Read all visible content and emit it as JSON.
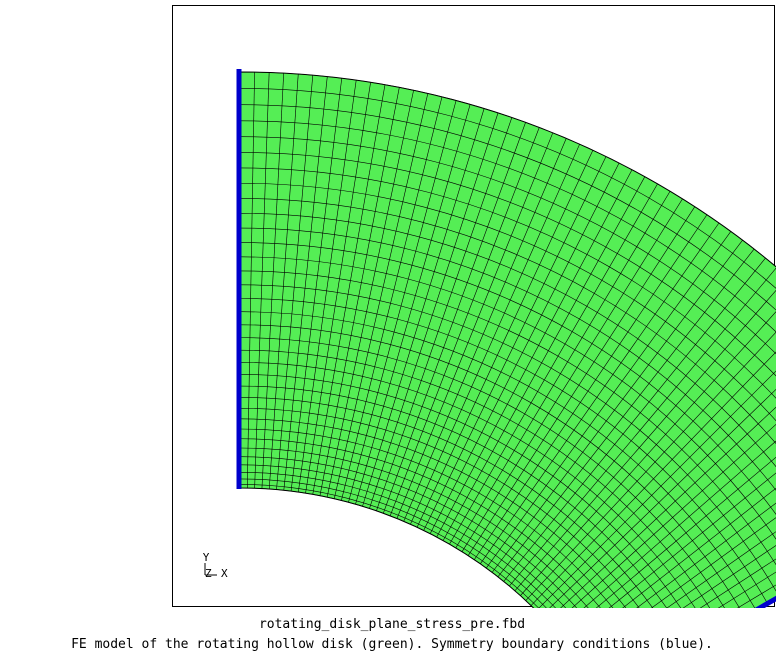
{
  "viewport": {
    "mesh_color": "#55ee55",
    "mesh_line_color": "#000000",
    "bc_color": "#0000cc",
    "radial_divisions": 34,
    "angular_divisions": 60,
    "sector_angle_deg": 60,
    "triad": {
      "y_label": "Y",
      "z_label": "Z",
      "x_label": "X"
    }
  },
  "filename": "rotating_disk_plane_stress_pre.fbd",
  "caption": "FE model of the rotating hollow disk (green). Symmetry boundary conditions (blue)."
}
